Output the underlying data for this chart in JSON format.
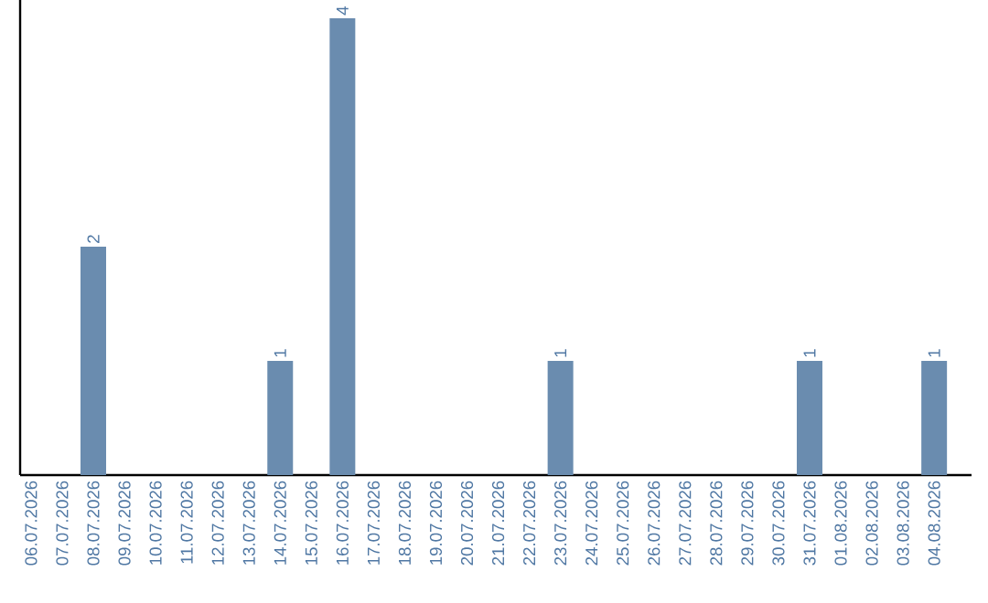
{
  "chart_data": {
    "type": "bar",
    "categories": [
      "06.07.2026",
      "07.07.2026",
      "08.07.2026",
      "09.07.2026",
      "10.07.2026",
      "11.07.2026",
      "12.07.2026",
      "13.07.2026",
      "14.07.2026",
      "15.07.2026",
      "16.07.2026",
      "17.07.2026",
      "18.07.2026",
      "19.07.2026",
      "20.07.2026",
      "21.07.2026",
      "22.07.2026",
      "23.07.2026",
      "24.07.2026",
      "25.07.2026",
      "26.07.2026",
      "27.07.2026",
      "28.07.2026",
      "29.07.2026",
      "30.07.2026",
      "31.07.2026",
      "01.08.2026",
      "02.08.2026",
      "03.08.2026",
      "04.08.2026"
    ],
    "values": [
      0,
      0,
      2,
      0,
      0,
      0,
      0,
      0,
      1,
      0,
      4,
      0,
      0,
      0,
      0,
      0,
      0,
      1,
      0,
      0,
      0,
      0,
      0,
      0,
      0,
      1,
      0,
      0,
      0,
      1
    ],
    "value_labels": [
      null,
      null,
      "2",
      null,
      null,
      null,
      null,
      null,
      "1",
      null,
      "4",
      null,
      null,
      null,
      null,
      null,
      null,
      "1",
      null,
      null,
      null,
      null,
      null,
      null,
      null,
      "1",
      null,
      null,
      null,
      "1"
    ],
    "color": "#6a8caf"
  }
}
